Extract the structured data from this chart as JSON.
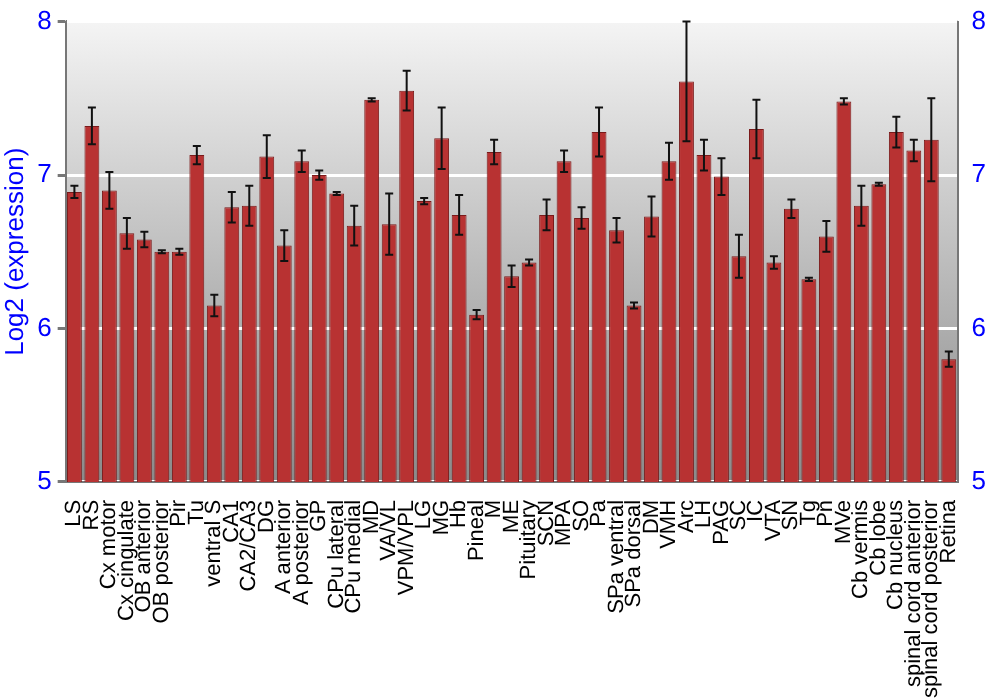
{
  "chart_data": {
    "type": "bar",
    "ylabel": "Log2 (expression)",
    "categories": [
      "LS",
      "RS",
      "Cx motor",
      "Cx cingulate",
      "OB anterior",
      "OB posterior",
      "Pir",
      "Tu",
      "ventral S",
      "CA1",
      "CA2/CA3",
      "DG",
      "A anterior",
      "A posterior",
      "GP",
      "CPu lateral",
      "CPu medial",
      "MD",
      "VA/VL",
      "VPM/VPL",
      "LG",
      "MG",
      "Hb",
      "Pineal",
      "M",
      "ME",
      "Pituitary",
      "SCN",
      "MPA",
      "SO",
      "Pa",
      "SPa ventral",
      "SPa dorsal",
      "DM",
      "VMH",
      "Arc",
      "LH",
      "PAG",
      "SC",
      "IC",
      "VTA",
      "SN",
      "Tg",
      "Pn",
      "MVe",
      "Cb vermis",
      "Cb lobe",
      "Cb nucleus",
      "spinal cord anterior",
      "spinal cord posterior",
      "Retina"
    ],
    "values": [
      6.89,
      7.32,
      6.9,
      6.62,
      6.58,
      6.5,
      6.5,
      7.13,
      6.15,
      6.79,
      6.8,
      7.12,
      6.54,
      7.09,
      7.0,
      6.88,
      6.67,
      7.49,
      6.68,
      7.55,
      6.83,
      7.24,
      6.74,
      6.09,
      7.15,
      6.34,
      6.43,
      6.74,
      7.09,
      6.72,
      7.28,
      6.64,
      6.15,
      6.73,
      7.09,
      7.61,
      7.13,
      6.99,
      6.47,
      7.3,
      6.43,
      6.78,
      6.32,
      6.6,
      7.48,
      6.8,
      6.94,
      7.28,
      7.16,
      7.23,
      5.8
    ],
    "errors": [
      0.04,
      0.12,
      0.12,
      0.1,
      0.05,
      0.01,
      0.02,
      0.06,
      0.07,
      0.1,
      0.13,
      0.14,
      0.1,
      0.07,
      0.03,
      0.01,
      0.13,
      0.01,
      0.2,
      0.13,
      0.02,
      0.2,
      0.13,
      0.03,
      0.08,
      0.07,
      0.02,
      0.1,
      0.07,
      0.07,
      0.16,
      0.08,
      0.02,
      0.13,
      0.12,
      0.39,
      0.1,
      0.12,
      0.14,
      0.19,
      0.04,
      0.06,
      0.01,
      0.1,
      0.02,
      0.13,
      0.01,
      0.1,
      0.07,
      0.27,
      0.05
    ],
    "color": "#b83232",
    "ylim": [
      5,
      8
    ],
    "yticks": [
      5,
      6,
      7,
      8
    ],
    "y2lim": [
      5,
      8
    ],
    "y2ticks": [
      5,
      6,
      7,
      8
    ],
    "grid": "y",
    "legend": false
  }
}
